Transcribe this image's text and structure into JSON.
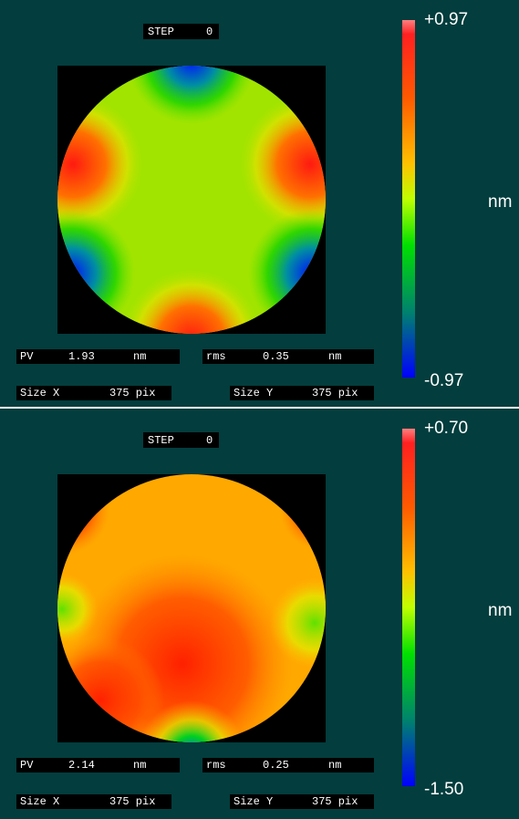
{
  "panels": [
    {
      "step_label": "STEP",
      "step": "0",
      "scale_max": "+0.97",
      "unit": "nm",
      "scale_min": "-0.97",
      "pv_label": "PV",
      "pv": "1.93",
      "pv_unit": "nm",
      "rms_label": "rms",
      "rms": "0.35",
      "rms_unit": "nm",
      "size_x_label": "Size X",
      "size_x": "375 pix",
      "size_y_label": "Size Y",
      "size_y": "375 pix"
    },
    {
      "step_label": "STEP",
      "step": "0",
      "scale_max": "+0.70",
      "unit": "nm",
      "scale_min": "-1.50",
      "pv_label": "PV",
      "pv": "2.14",
      "pv_unit": "nm",
      "rms_label": "rms",
      "rms": "0.25",
      "rms_unit": "nm",
      "size_x_label": "Size X",
      "size_x": "375 pix",
      "size_y_label": "Size Y",
      "size_y": "375 pix"
    }
  ]
}
